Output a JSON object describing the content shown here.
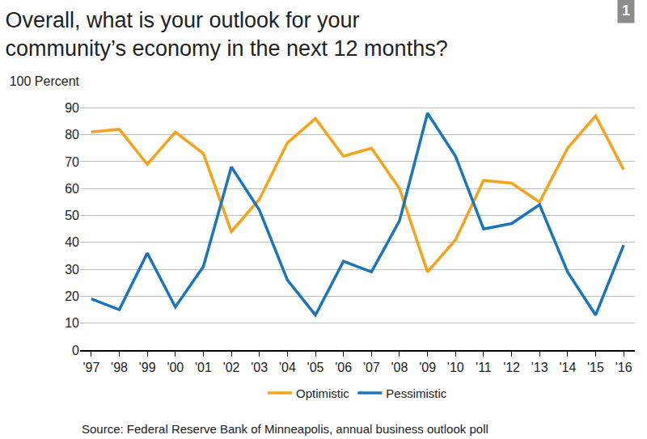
{
  "chart_data": {
    "type": "line",
    "title": [
      "Overall, what is your outlook for your",
      "community’s economy in the next 12 months?"
    ],
    "annotations": [
      "1"
    ],
    "source": "Source: Federal Reserve Bank of Minneapolis, annual business outlook poll",
    "categories": [
      "'97",
      "'98",
      "'99",
      "'00",
      "'01",
      "'02",
      "'03",
      "'04",
      "'05",
      "'06",
      "'07",
      "'08",
      "'09",
      "'10",
      "'11",
      "'12",
      "'13",
      "'14",
      "'15",
      "'16"
    ],
    "series": [
      {
        "name": "Optimistic",
        "color": "#f7a21b",
        "values": [
          81,
          82,
          69,
          81,
          73,
          44,
          56,
          77,
          86,
          72,
          75,
          60,
          29,
          41,
          63,
          62,
          55,
          75,
          87,
          67
        ]
      },
      {
        "name": "Pessimistic",
        "color": "#1a75bc",
        "values": [
          19,
          15,
          36,
          16,
          31,
          68,
          52,
          26,
          13,
          33,
          29,
          48,
          88,
          72,
          45,
          47,
          54,
          29,
          13,
          39
        ]
      }
    ],
    "ylim": [
      0,
      100
    ],
    "yticks": [
      0,
      10,
      20,
      30,
      40,
      50,
      60,
      70,
      80,
      90,
      {
        "value": 100,
        "label": "100 Percent"
      }
    ],
    "grid": true,
    "legend": "bottom"
  }
}
